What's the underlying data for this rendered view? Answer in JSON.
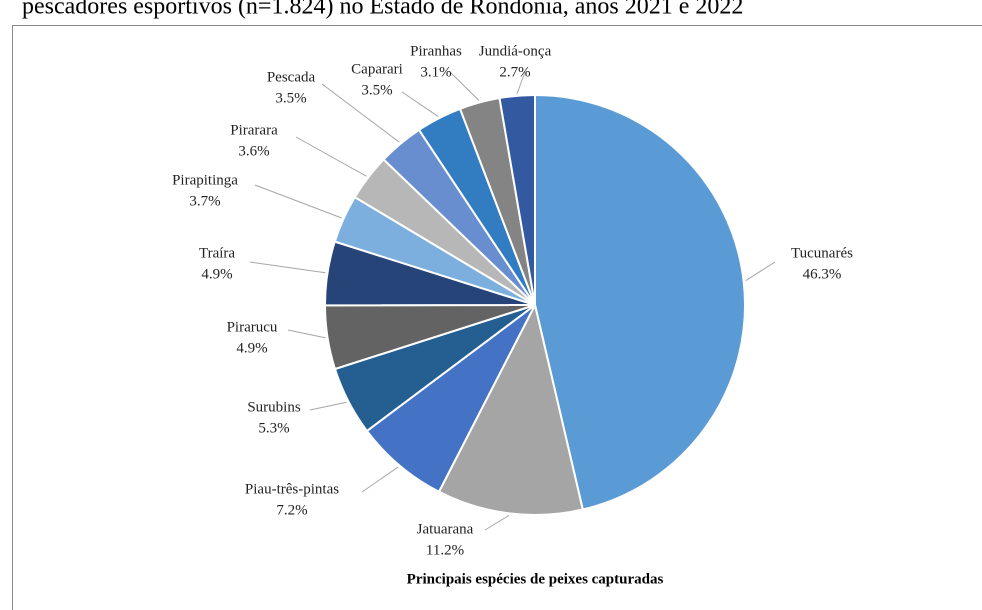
{
  "chart_data": {
    "type": "pie",
    "caption": "pescadores esportivos (n=1.824) no Estado de Rondônia, anos 2021 e 2022",
    "title": "Principais espécies de peixes capturadas",
    "categories": [
      "Tucunarés",
      "Jatuarana",
      "Piau-três-pintas",
      "Surubins",
      "Pirarucu",
      "Traíra",
      "Pirapitinga",
      "Pirarara",
      "Pescada",
      "Caparari",
      "Piranhas",
      "Jundiá-onça"
    ],
    "values": [
      46.3,
      11.2,
      7.2,
      5.3,
      4.9,
      4.9,
      3.7,
      3.6,
      3.5,
      3.5,
      3.1,
      2.7
    ],
    "value_labels": [
      "46.3%",
      "11.2%",
      "7.2%",
      "5.3%",
      "4.9%",
      "4.9%",
      "3.7%",
      "3.6%",
      "3.5%",
      "3.5%",
      "3.1%",
      "2.7%"
    ],
    "colors": [
      "#5b9bd5",
      "#a5a5a5",
      "#4472c4",
      "#255e91",
      "#636363",
      "#264478",
      "#7cafdd",
      "#b7b7b7",
      "#698ed0",
      "#327dc2",
      "#848484",
      "#335aa1"
    ]
  }
}
